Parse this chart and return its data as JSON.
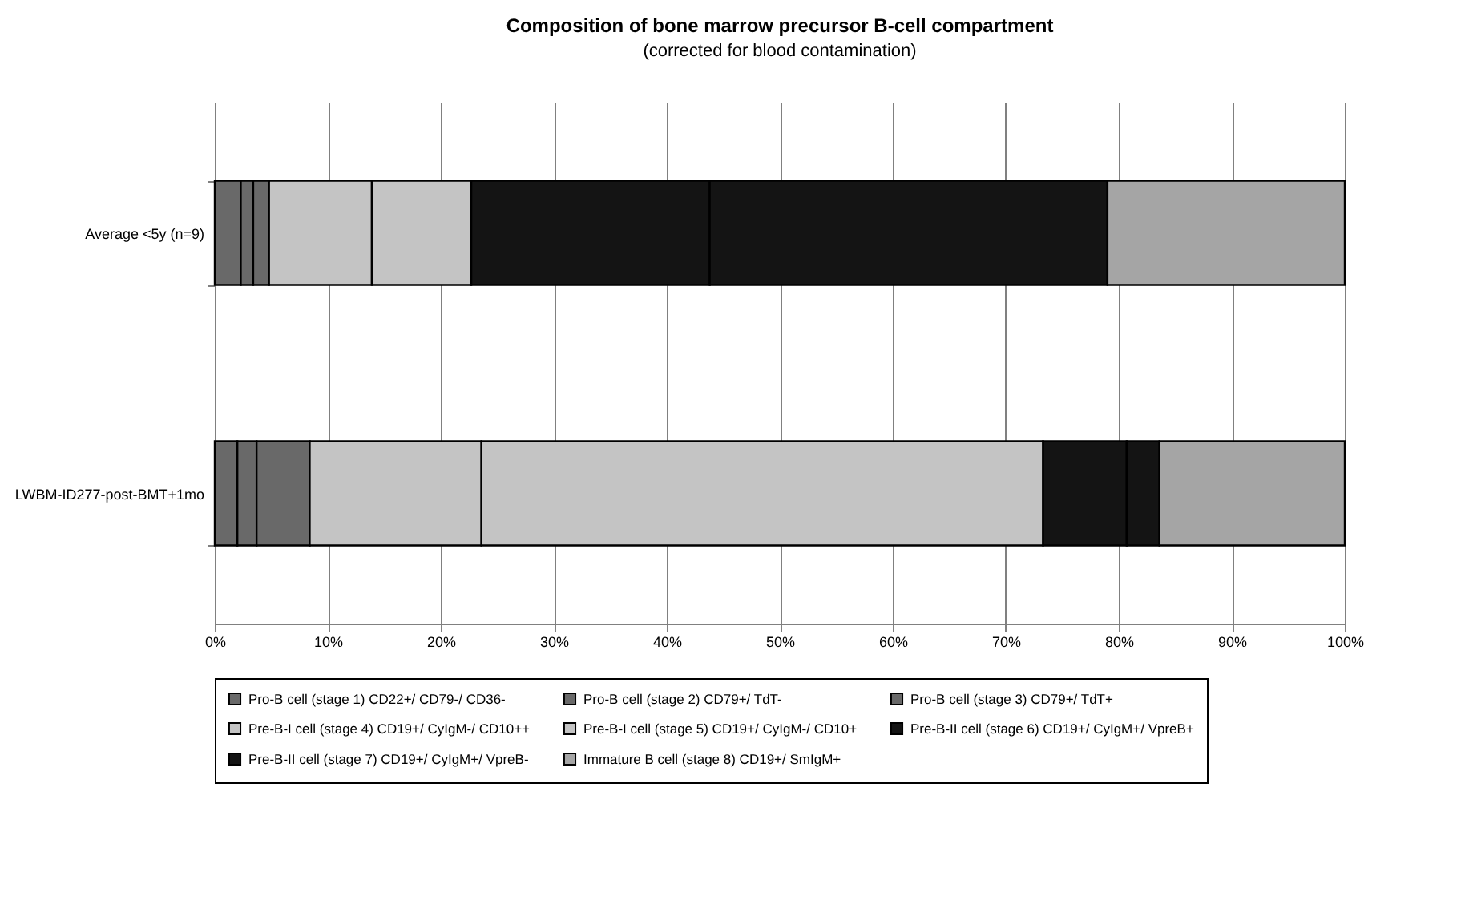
{
  "chart_data": {
    "type": "bar",
    "orientation": "horizontal",
    "stacked": true,
    "title": "Composition of bone marrow precursor B-cell compartment",
    "subtitle": "(corrected for blood contamination)",
    "categories": [
      "Average <5y (n=9)",
      "LWBM-ID277-post-BMT+1mo"
    ],
    "series": [
      {
        "name": "Pro-B cell (stage 1) CD22+/ CD79-/ CD36-",
        "color": "#696969",
        "values": [
          2.3,
          2.0
        ]
      },
      {
        "name": "Pro-B cell (stage 2) CD79+/ TdT-",
        "color": "#696969",
        "values": [
          1.1,
          1.7
        ]
      },
      {
        "name": "Pro-B cell (stage 3) CD79+/ TdT+",
        "color": "#696969",
        "values": [
          1.4,
          4.7
        ]
      },
      {
        "name": "Pre-B-I cell (stage 4) CD19+/ CyIgM-/ CD10++",
        "color": "#c4c4c4",
        "values": [
          9.1,
          15.2
        ]
      },
      {
        "name": "Pre-B-I cell (stage 5) CD19+/ CyIgM-/ CD10+",
        "color": "#c4c4c4",
        "values": [
          8.8,
          49.7
        ]
      },
      {
        "name": "Pre-B-II cell (stage 6) CD19+/ CyIgM+/ VpreB+",
        "color": "#141414",
        "values": [
          21.1,
          7.4
        ]
      },
      {
        "name": "Pre-B-II cell (stage 7) CD19+/ CyIgM+/ VpreB-",
        "color": "#141414",
        "values": [
          35.2,
          2.9
        ]
      },
      {
        "name": "Immature B cell (stage 8) CD19+/ SmIgM+",
        "color": "#a5a5a5",
        "values": [
          21.0,
          16.4
        ]
      }
    ],
    "xlim": [
      0,
      100
    ],
    "xticks": [
      {
        "value": 0,
        "label": "0%"
      },
      {
        "value": 10,
        "label": "10%"
      },
      {
        "value": 20,
        "label": "20%"
      },
      {
        "value": 30,
        "label": "30%"
      },
      {
        "value": 40,
        "label": "40%"
      },
      {
        "value": 50,
        "label": "50%"
      },
      {
        "value": 60,
        "label": "60%"
      },
      {
        "value": 70,
        "label": "70%"
      },
      {
        "value": 80,
        "label": "80%"
      },
      {
        "value": 90,
        "label": "90%"
      },
      {
        "value": 100,
        "label": "100%"
      }
    ],
    "grid": "x",
    "legend": "bottom"
  }
}
